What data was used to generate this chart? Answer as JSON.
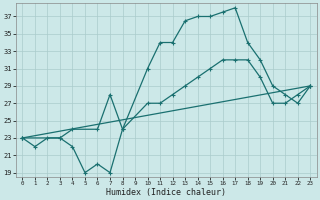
{
  "title": "",
  "xlabel": "Humidex (Indice chaleur)",
  "bg_color": "#cce8e8",
  "grid_color": "#aacccc",
  "line_color": "#1a7070",
  "xlim": [
    -0.5,
    23.5
  ],
  "ylim": [
    18.5,
    38.5
  ],
  "yticks": [
    19,
    21,
    23,
    25,
    27,
    29,
    31,
    33,
    35,
    37
  ],
  "xticks": [
    0,
    1,
    2,
    3,
    4,
    5,
    6,
    7,
    8,
    9,
    10,
    11,
    12,
    13,
    14,
    15,
    16,
    17,
    18,
    19,
    20,
    21,
    22,
    23
  ],
  "series1_x": [
    0,
    1,
    2,
    3,
    4,
    5,
    6,
    7,
    8,
    10,
    11,
    12,
    13,
    14,
    15,
    16,
    17,
    18,
    19,
    20,
    21,
    22,
    23
  ],
  "series1_y": [
    23,
    22,
    23,
    23,
    22,
    19,
    20,
    19,
    24,
    31,
    34,
    34,
    36.5,
    37,
    37,
    37.5,
    38,
    34,
    32,
    29,
    28,
    27,
    29
  ],
  "series2_x": [
    0,
    3,
    4,
    6,
    7,
    8,
    10,
    11,
    12,
    13,
    14,
    15,
    16,
    17,
    18,
    19,
    20,
    21,
    22,
    23
  ],
  "series2_y": [
    23,
    23,
    24,
    24,
    28,
    24,
    27,
    27,
    28,
    29,
    30,
    31,
    32,
    32,
    32,
    30,
    27,
    27,
    28,
    29
  ],
  "series3_x": [
    0,
    23
  ],
  "series3_y": [
    23,
    29
  ],
  "line_width": 0.9,
  "marker_size": 2.5
}
